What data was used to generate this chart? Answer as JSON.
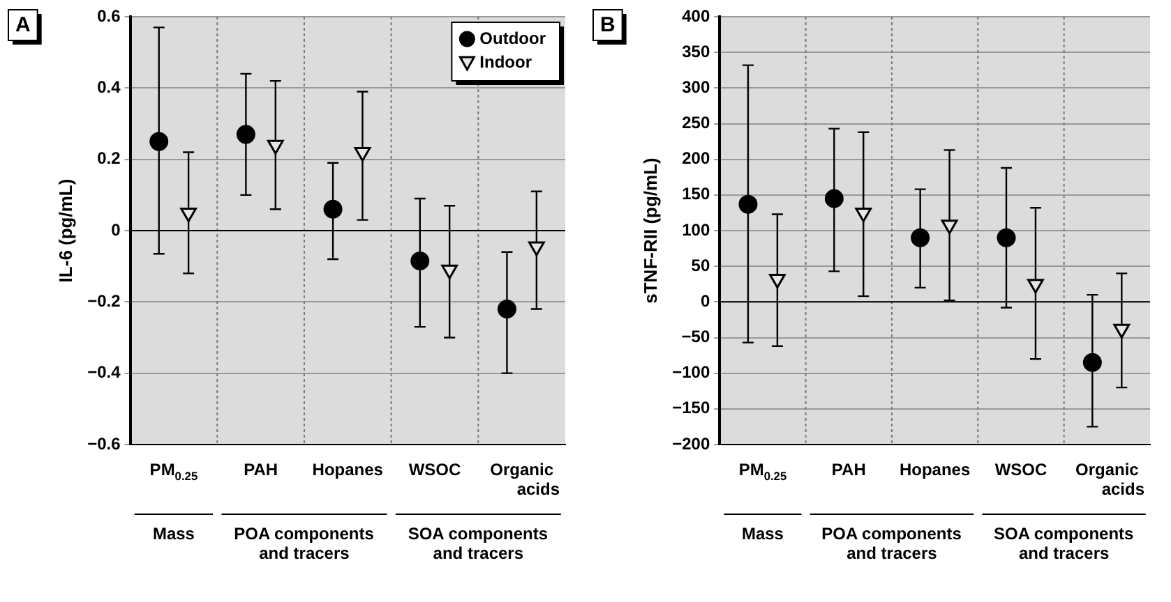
{
  "chart_data": [
    {
      "type": "scatter",
      "title": "A",
      "ylabel": "IL-6 (pg/mL)",
      "categories": [
        "PM$_{0.25}$",
        "PAH",
        "Hopanes",
        "WSOC",
        "Organic acids"
      ],
      "series": [
        {
          "name": "Outdoor",
          "color": "#000000",
          "marker": "circle",
          "values": [
            0.25,
            0.27,
            0.06,
            -0.085,
            -0.22
          ],
          "errors": [
            [
              -0.065,
              0.57
            ],
            [
              0.1,
              0.44
            ],
            [
              -0.08,
              0.19
            ],
            [
              -0.27,
              0.09
            ],
            [
              -0.4,
              -0.06
            ]
          ]
        },
        {
          "name": "Indoor",
          "color": "#000000",
          "marker": "triangle",
          "values": [
            0.05,
            0.24,
            0.22,
            -0.11,
            -0.045
          ],
          "errors": [
            [
              -0.12,
              0.22
            ],
            [
              0.06,
              0.42
            ],
            [
              0.03,
              0.39
            ],
            [
              -0.3,
              0.07
            ],
            [
              -0.22,
              0.11
            ]
          ]
        }
      ],
      "ylim": [
        -0.6,
        0.6
      ],
      "yticks": [
        -0.6,
        -0.4,
        -0.2,
        0,
        0.2,
        0.4,
        0.6
      ],
      "grid": true,
      "legend": "top right",
      "ref_lines": [
        {
          "axis": "y",
          "value": 0
        }
      ],
      "annotations": [
        "Mass",
        "POA components and tracers",
        "SOA components and tracers"
      ]
    },
    {
      "type": "scatter",
      "title": "B",
      "ylabel": "sTNF-RII (pg/mL)",
      "categories": [
        "PM$_{0.25}$",
        "PAH",
        "Hopanes",
        "WSOC",
        "Organic acids"
      ],
      "series": [
        {
          "color": "#000000",
          "marker": "circle",
          "values": [
            137,
            145,
            90,
            90,
            -85
          ],
          "errors": [
            [
              -57,
              332
            ],
            [
              43,
              243
            ],
            [
              20,
              158
            ],
            [
              -8,
              188
            ],
            [
              -175,
              10
            ]
          ]
        },
        {
          "color": "#000000",
          "marker": "triangle",
          "values": [
            32,
            125,
            108,
            25,
            -38
          ],
          "errors": [
            [
              -62,
              123
            ],
            [
              8,
              238
            ],
            [
              2,
              213
            ],
            [
              -80,
              132
            ],
            [
              -120,
              40
            ]
          ]
        }
      ],
      "ylim": [
        -200,
        400
      ],
      "yticks": [
        -200,
        -150,
        -100,
        -50,
        0,
        50,
        100,
        150,
        200,
        250,
        300,
        350,
        400
      ],
      "grid": true,
      "ref_lines": [
        {
          "axis": "y",
          "value": 0
        }
      ],
      "annotations": [
        "Mass",
        "POA components and tracers",
        "SOA components and tracers"
      ]
    }
  ]
}
